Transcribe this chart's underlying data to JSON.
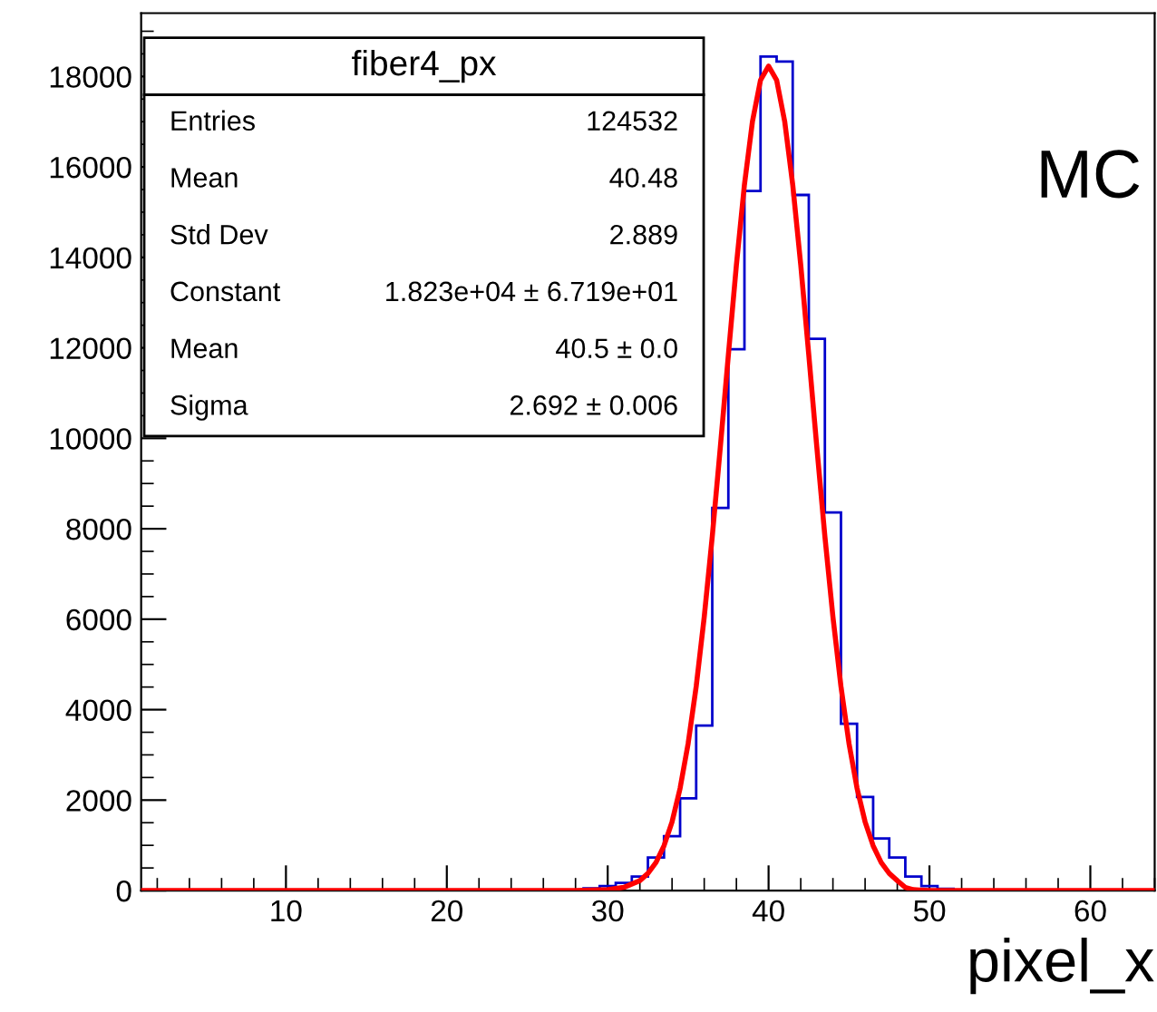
{
  "chart_data": {
    "type": "histogram",
    "xlabel": "pixel_x",
    "bins": [
      27.5,
      28.5,
      29.5,
      30.5,
      31.5,
      32.5,
      33.5,
      34.5,
      35.5,
      36.5,
      37.5,
      38.5,
      39.5,
      40.5,
      41.5,
      42.5,
      43.5,
      44.5,
      45.5,
      46.5,
      47.5,
      48.5,
      49.5,
      50.5,
      51.5,
      52.5
    ],
    "values": [
      0,
      50,
      100,
      170,
      310,
      730,
      1200,
      2040,
      3650,
      8460,
      11970,
      15470,
      18440,
      18330,
      15380,
      12200,
      8360,
      3690,
      2070,
      1150,
      730,
      310,
      100,
      40,
      0
    ],
    "color": "#0000cc",
    "series": [
      {
        "type": "line",
        "color": "#ff0000",
        "x": [
          1,
          25,
          28,
          30,
          31,
          32,
          32.5,
          33,
          33.5,
          34,
          34.5,
          35,
          35.5,
          36,
          36.5,
          37,
          37.5,
          38,
          38.5,
          39,
          39.5,
          40,
          40.5,
          41,
          41.5,
          42,
          42.5,
          43,
          43.5,
          44,
          44.5,
          45,
          45.5,
          46,
          46.5,
          47,
          47.5,
          48,
          48.5,
          49,
          50,
          51,
          53,
          56,
          64
        ],
        "values": [
          0,
          0,
          0,
          20,
          70,
          220,
          380,
          620,
          990,
          1520,
          2260,
          3250,
          4510,
          6050,
          7830,
          9800,
          11840,
          13830,
          15610,
          17010,
          17920,
          18230,
          17920,
          17010,
          15610,
          13830,
          11840,
          9800,
          7830,
          6050,
          4510,
          3250,
          2260,
          1520,
          990,
          620,
          380,
          220,
          70,
          20,
          0,
          0,
          0,
          0,
          0
        ]
      }
    ],
    "xlim": [
      1,
      64
    ],
    "xticks": [
      10,
      20,
      30,
      40,
      50,
      60
    ],
    "ylim": [
      0,
      19400
    ],
    "yticks": [
      0,
      2000,
      4000,
      6000,
      8000,
      10000,
      12000,
      14000,
      16000,
      18000
    ],
    "grid": false,
    "legend": false,
    "annotations": [
      "fiber4_px",
      "Entries",
      "124532",
      "Mean",
      "40.48",
      "Std Dev",
      "2.889",
      "Constant",
      "1.823e+04 ± 6.719e+01",
      "Mean",
      "40.5 ± 0.0",
      "Sigma",
      "2.692 ± 0.006",
      "MC"
    ]
  }
}
